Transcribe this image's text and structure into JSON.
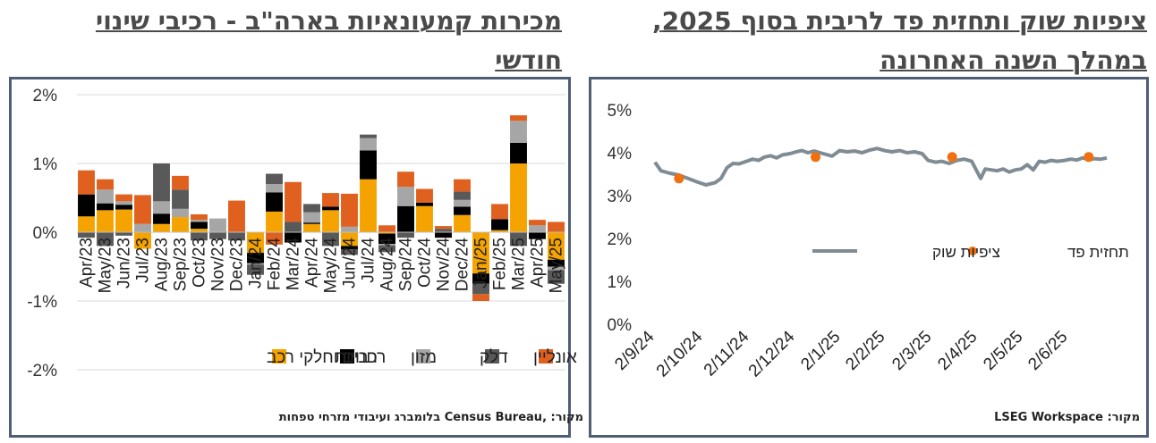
{
  "left_panel": {
    "title": "מכירות קמעונאיות בארה\"ב - רכיבי שינוי חודשי",
    "source": "מקור: ,Census Bureau בלומברג ועיבודי מזרחי טפחות"
  },
  "right_panel": {
    "title": "ציפיות שוק ותחזית פד לריבית בסוף 2025, במהלך השנה האחרונה",
    "source": "מקור: LSEG Workspace"
  },
  "colors": {
    "cars": "#f5a300",
    "stores": "#000000",
    "food": "#a6a6a6",
    "fuel": "#595959",
    "online": "#e0601f",
    "market_line": "#7f8c94",
    "fed_dot": "#f07010",
    "frame": "#4f5d75",
    "grid": "#d9d9d9"
  },
  "chart_data": [
    {
      "type": "bar",
      "stacked": true,
      "categories": [
        "Apr/23",
        "May/23",
        "Jun/23",
        "Jul/23",
        "Aug/23",
        "Sep/23",
        "Oct/23",
        "Nov/23",
        "Dec/23",
        "Jan/24",
        "Feb/24",
        "Mar/24",
        "Apr/24",
        "May/24",
        "Jun/24",
        "Jul/24",
        "Aug/24",
        "Sep/24",
        "Oct/24",
        "Nov/24",
        "Dec/24",
        "Jan/25",
        "Feb/25",
        "Mar/25",
        "Apr/25",
        "May/25"
      ],
      "series": [
        {
          "name": "רכבים וחלקי רכב",
          "key": "cars",
          "values": [
            0.23,
            0.32,
            0.33,
            -0.24,
            0.12,
            0.22,
            0.05,
            0.0,
            0.0,
            -0.3,
            0.3,
            0.0,
            0.12,
            0.32,
            -0.2,
            0.77,
            -0.02,
            0.0,
            0.38,
            0.0,
            0.25,
            -0.6,
            0.03,
            1.0,
            0.0,
            -0.4
          ]
        },
        {
          "name": "חנויות",
          "key": "stores",
          "values": [
            0.32,
            0.1,
            0.07,
            0.0,
            0.15,
            0.0,
            0.1,
            0.0,
            0.0,
            -0.15,
            0.28,
            -0.15,
            0.02,
            0.05,
            -0.05,
            0.42,
            -0.15,
            0.38,
            0.05,
            -0.08,
            0.12,
            -0.15,
            0.16,
            0.3,
            -0.1,
            -0.1
          ]
        },
        {
          "name": "מזון",
          "key": "food",
          "values": [
            0.0,
            0.2,
            0.05,
            0.12,
            0.18,
            0.12,
            0.03,
            0.2,
            0.0,
            -0.02,
            0.12,
            0.0,
            0.15,
            0.0,
            0.08,
            0.18,
            -0.02,
            0.28,
            0.0,
            0.0,
            0.1,
            0.0,
            0.0,
            0.32,
            0.1,
            -0.05
          ]
        },
        {
          "name": "דלק",
          "key": "fuel",
          "values": [
            -0.08,
            -0.2,
            -0.05,
            0.0,
            0.55,
            0.28,
            -0.12,
            -0.1,
            -0.12,
            -0.15,
            0.15,
            0.15,
            0.12,
            -0.2,
            -0.08,
            0.05,
            -0.1,
            -0.08,
            0.0,
            0.05,
            0.12,
            -0.15,
            0.0,
            -0.2,
            0.0,
            -0.2
          ]
        },
        {
          "name": "אונליין",
          "key": "online",
          "values": [
            0.35,
            0.15,
            0.1,
            0.42,
            0.0,
            0.2,
            0.08,
            0.0,
            0.46,
            0.0,
            -0.18,
            0.58,
            0.0,
            0.2,
            0.48,
            0.0,
            0.1,
            0.22,
            0.2,
            0.04,
            0.18,
            -0.1,
            0.22,
            0.08,
            0.08,
            0.15
          ]
        }
      ],
      "ylim": [
        -2,
        2
      ],
      "yticks": [
        "2%",
        "1%",
        "0%",
        "-1%",
        "-2%"
      ],
      "legend_position": "bottom"
    },
    {
      "type": "line",
      "x_ticks": [
        "2/9/24",
        "2/10/24",
        "2/11/24",
        "2/12/24",
        "2/1/25",
        "2/2/25",
        "2/3/25",
        "2/4/25",
        "2/5/25",
        "2/6/25"
      ],
      "yticks": [
        "5%",
        "4%",
        "3%",
        "2%",
        "1%",
        "0%"
      ],
      "ylim": [
        0,
        5
      ],
      "series": [
        {
          "name": "ציפיות שוק",
          "type": "line",
          "points": [
            [
              "2024-09-02",
              3.78
            ],
            [
              "2024-09-06",
              3.58
            ],
            [
              "2024-09-12",
              3.52
            ],
            [
              "2024-09-18",
              3.48
            ],
            [
              "2024-09-24",
              3.4
            ],
            [
              "2024-09-30",
              3.32
            ],
            [
              "2024-10-06",
              3.25
            ],
            [
              "2024-10-12",
              3.3
            ],
            [
              "2024-10-16",
              3.4
            ],
            [
              "2024-10-20",
              3.65
            ],
            [
              "2024-10-24",
              3.75
            ],
            [
              "2024-10-28",
              3.74
            ],
            [
              "2024-11-02",
              3.8
            ],
            [
              "2024-11-06",
              3.85
            ],
            [
              "2024-11-10",
              3.82
            ],
            [
              "2024-11-14",
              3.9
            ],
            [
              "2024-11-18",
              3.93
            ],
            [
              "2024-11-22",
              3.88
            ],
            [
              "2024-11-26",
              3.95
            ],
            [
              "2024-12-01",
              3.98
            ],
            [
              "2024-12-05",
              4.02
            ],
            [
              "2024-12-09",
              4.05
            ],
            [
              "2024-12-13",
              4.0
            ],
            [
              "2024-12-17",
              4.04
            ],
            [
              "2024-12-21",
              4.0
            ],
            [
              "2024-12-25",
              3.96
            ],
            [
              "2024-12-29",
              3.92
            ],
            [
              "2025-01-03",
              4.05
            ],
            [
              "2025-01-08",
              4.02
            ],
            [
              "2025-01-13",
              4.04
            ],
            [
              "2025-01-18",
              4.0
            ],
            [
              "2025-01-23",
              4.06
            ],
            [
              "2025-01-28",
              4.1
            ],
            [
              "2025-02-02",
              4.05
            ],
            [
              "2025-02-07",
              4.02
            ],
            [
              "2025-02-12",
              4.05
            ],
            [
              "2025-02-17",
              4.0
            ],
            [
              "2025-02-22",
              4.02
            ],
            [
              "2025-02-27",
              3.98
            ],
            [
              "2025-03-03",
              3.82
            ],
            [
              "2025-03-08",
              3.78
            ],
            [
              "2025-03-12",
              3.8
            ],
            [
              "2025-03-17",
              3.75
            ],
            [
              "2025-03-22",
              3.82
            ],
            [
              "2025-03-27",
              3.85
            ],
            [
              "2025-04-01",
              3.8
            ],
            [
              "2025-04-04",
              3.6
            ],
            [
              "2025-04-07",
              3.4
            ],
            [
              "2025-04-10",
              3.62
            ],
            [
              "2025-04-14",
              3.6
            ],
            [
              "2025-04-18",
              3.58
            ],
            [
              "2025-04-22",
              3.62
            ],
            [
              "2025-04-26",
              3.55
            ],
            [
              "2025-04-30",
              3.6
            ],
            [
              "2025-05-04",
              3.62
            ],
            [
              "2025-05-08",
              3.72
            ],
            [
              "2025-05-12",
              3.6
            ],
            [
              "2025-05-16",
              3.8
            ],
            [
              "2025-05-20",
              3.78
            ],
            [
              "2025-05-24",
              3.82
            ],
            [
              "2025-05-28",
              3.8
            ],
            [
              "2025-06-02",
              3.82
            ],
            [
              "2025-06-06",
              3.85
            ],
            [
              "2025-06-10",
              3.83
            ],
            [
              "2025-06-14",
              3.88
            ],
            [
              "2025-06-18",
              3.84
            ],
            [
              "2025-06-22",
              3.86
            ],
            [
              "2025-06-26",
              3.85
            ],
            [
              "2025-06-30",
              3.88
            ]
          ]
        },
        {
          "name": "תחזית פד",
          "type": "scatter",
          "points": [
            [
              "2024-09-18",
              3.4
            ],
            [
              "2024-12-18",
              3.9
            ],
            [
              "2025-03-19",
              3.9
            ],
            [
              "2025-06-18",
              3.9
            ]
          ]
        }
      ],
      "legend_position": "middle"
    }
  ]
}
